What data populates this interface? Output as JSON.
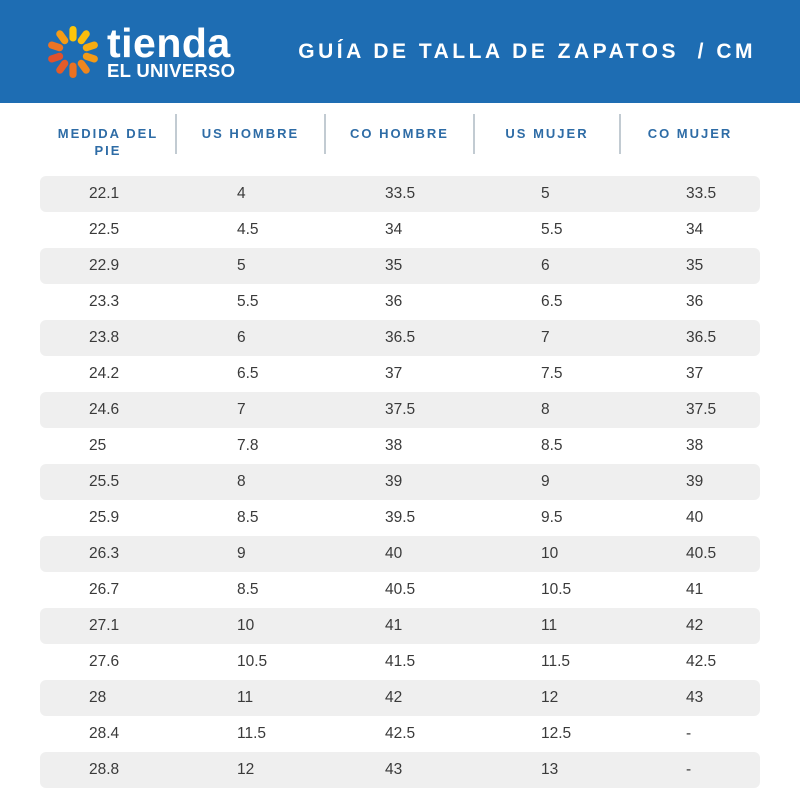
{
  "brand": {
    "name_line1": "tienda",
    "name_line2": "EL UNIVERSO",
    "logo_petal_colors": [
      "#FDC60B",
      "#FBBD0D",
      "#F6AC13",
      "#F29A18",
      "#EE861E",
      "#EA7123",
      "#E55B28",
      "#E1512C",
      "#EC7424",
      "#F59B16"
    ]
  },
  "header": {
    "title": "GUÍA DE TALLA DE ZAPATOS  / CM"
  },
  "colors": {
    "banner_bg": "#1E6DB3",
    "header_text": "#2E6CA6",
    "divider": "#C2CBD2",
    "row_alt_bg": "#EFEFEF",
    "cell_text": "#3A3A3A"
  },
  "table": {
    "columns": [
      {
        "id": "medida-del-pie",
        "label": "MEDIDA DEL PIE"
      },
      {
        "id": "us-hombre",
        "label": "US HOMBRE"
      },
      {
        "id": "co-hombre",
        "label": "CO HOMBRE"
      },
      {
        "id": "us-mujer",
        "label": "US MUJER"
      },
      {
        "id": "co-mujer",
        "label": "CO MUJER"
      }
    ],
    "rows": [
      [
        "22.1",
        "4",
        "33.5",
        "5",
        "33.5"
      ],
      [
        "22.5",
        "4.5",
        "34",
        "5.5",
        "34"
      ],
      [
        "22.9",
        "5",
        "35",
        "6",
        "35"
      ],
      [
        "23.3",
        "5.5",
        "36",
        "6.5",
        "36"
      ],
      [
        "23.8",
        "6",
        "36.5",
        "7",
        "36.5"
      ],
      [
        "24.2",
        "6.5",
        "37",
        "7.5",
        "37"
      ],
      [
        "24.6",
        "7",
        "37.5",
        "8",
        "37.5"
      ],
      [
        "25",
        "7.8",
        "38",
        "8.5",
        "38"
      ],
      [
        "25.5",
        "8",
        "39",
        "9",
        "39"
      ],
      [
        "25.9",
        "8.5",
        "39.5",
        "9.5",
        "40"
      ],
      [
        "26.3",
        "9",
        "40",
        "10",
        "40.5"
      ],
      [
        "26.7",
        "8.5",
        "40.5",
        "10.5",
        "41"
      ],
      [
        "27.1",
        "10",
        "41",
        "11",
        "42"
      ],
      [
        "27.6",
        "10.5",
        "41.5",
        "11.5",
        "42.5"
      ],
      [
        "28",
        "11",
        "42",
        "12",
        "43"
      ],
      [
        "28.4",
        "11.5",
        "42.5",
        "12.5",
        "-"
      ],
      [
        "28.8",
        "12",
        "43",
        "13",
        "-"
      ]
    ]
  }
}
